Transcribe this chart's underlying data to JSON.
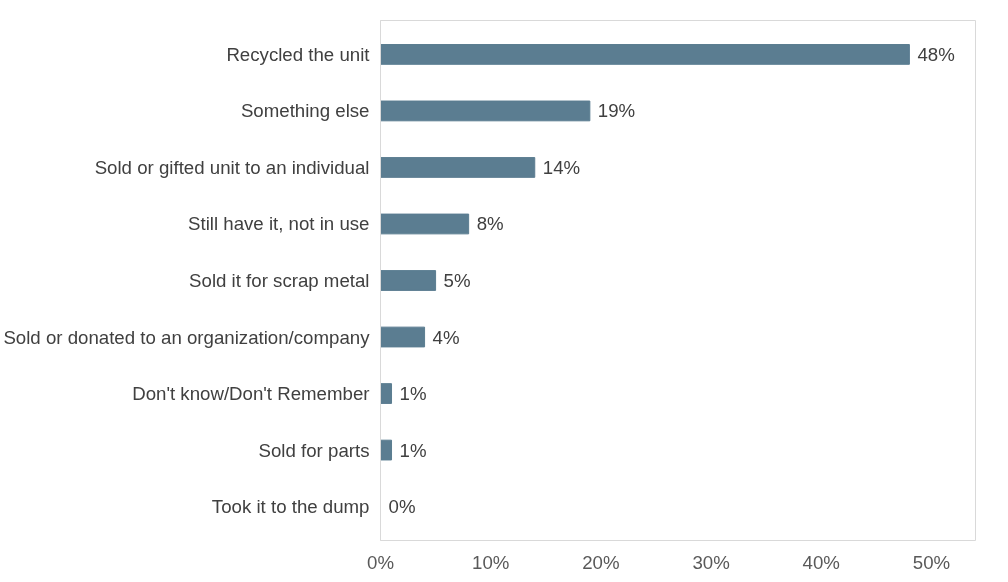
{
  "chart_data": {
    "type": "bar",
    "orientation": "horizontal",
    "categories": [
      "Recycled the unit",
      "Something else",
      "Sold or gifted unit to an individual",
      "Still have it, not in use",
      "Sold it for scrap metal",
      "Sold or donated to an organization/company",
      "Don't know/Don't Remember",
      "Sold for parts",
      "Took it to the dump"
    ],
    "values": [
      48,
      19,
      14,
      8,
      5,
      4,
      1,
      1,
      0
    ],
    "value_labels": [
      "48%",
      "19%",
      "14%",
      "8%",
      "5%",
      "4%",
      "1%",
      "1%",
      "0%"
    ],
    "color": "#5b7d91",
    "xlim": [
      0,
      54
    ],
    "xticks": [
      {
        "value": 0,
        "label": "0%"
      },
      {
        "value": 10,
        "label": "10%"
      },
      {
        "value": 20,
        "label": "20%"
      },
      {
        "value": 30,
        "label": "30%"
      },
      {
        "value": 40,
        "label": "40%"
      },
      {
        "value": 50,
        "label": "50%"
      }
    ],
    "grid": false
  }
}
